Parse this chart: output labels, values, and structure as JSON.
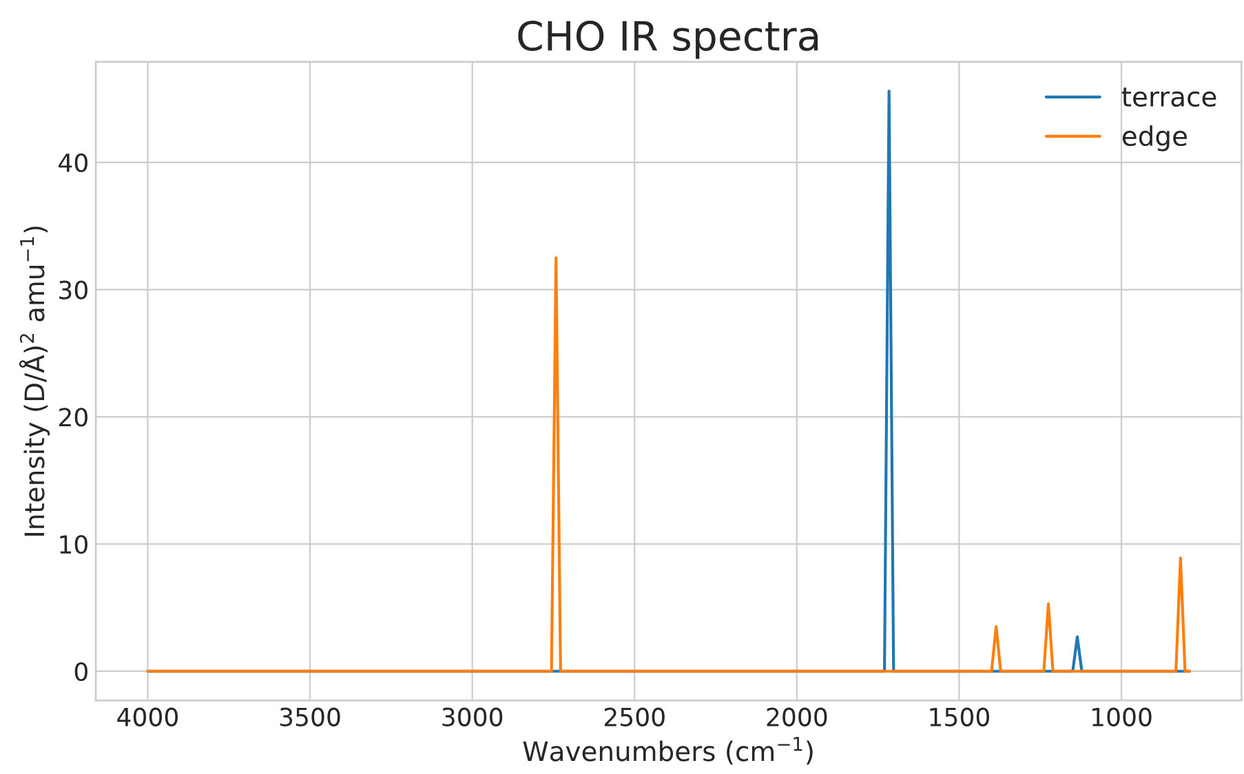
{
  "chart_data": {
    "type": "line",
    "title": "CHO IR spectra",
    "xlabel": "Wavenumbers (cm$^{−1}$)",
    "ylabel": "Intensity (D/Å)$^{2}$ amu$^{−1}$)",
    "series": [
      {
        "name": "terrace",
        "color": "#1f77b4",
        "x": [
          4000,
          1730,
          1716,
          1702,
          1150,
          1136,
          1122,
          790
        ],
        "values": [
          0,
          0,
          45.6,
          0,
          0,
          2.7,
          0,
          0
        ]
      },
      {
        "name": "edge",
        "color": "#ff7f0e",
        "x": [
          4000,
          2756,
          2742,
          2728,
          1400,
          1386,
          1372,
          1239,
          1225,
          1211,
          832,
          818,
          804,
          790
        ],
        "values": [
          0,
          0,
          32.5,
          0,
          0,
          3.5,
          0,
          0,
          5.3,
          0,
          0,
          8.9,
          0,
          0
        ]
      }
    ],
    "xlim": [
      4160,
      630
    ],
    "xticks": [
      4000,
      3500,
      3000,
      2500,
      2000,
      1500,
      1000
    ],
    "ylim": [
      -2.3,
      47.9
    ],
    "yticks": [
      0,
      10,
      20,
      30,
      40
    ],
    "grid": true,
    "legend": "top right"
  }
}
